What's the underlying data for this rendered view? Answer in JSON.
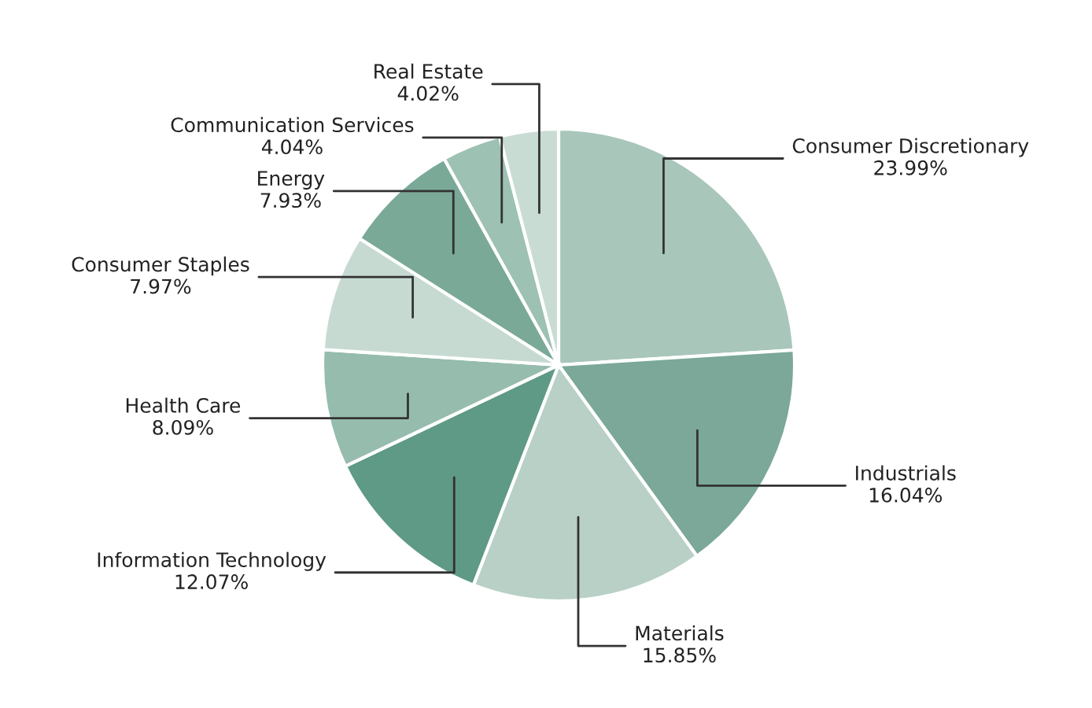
{
  "chart_data": {
    "type": "pie",
    "categories": [
      "Consumer Discretionary",
      "Industrials",
      "Materials",
      "Information Technology",
      "Health Care",
      "Consumer Staples",
      "Energy",
      "Communication Services",
      "Real Estate"
    ],
    "values": [
      23.99,
      16.04,
      15.85,
      12.07,
      8.09,
      7.97,
      7.93,
      4.04,
      4.02
    ],
    "value_labels": [
      "23.99%",
      "16.04%",
      "15.85%",
      "12.07%",
      "8.09%",
      "7.97%",
      "7.93%",
      "4.04%",
      "4.02%"
    ],
    "colors": [
      "#a8c6ba",
      "#7ba898",
      "#b8d0c6",
      "#5e9a85",
      "#96bcad",
      "#c6dad2",
      "#7aa998",
      "#9dc1b3",
      "#c8dcd4"
    ]
  }
}
